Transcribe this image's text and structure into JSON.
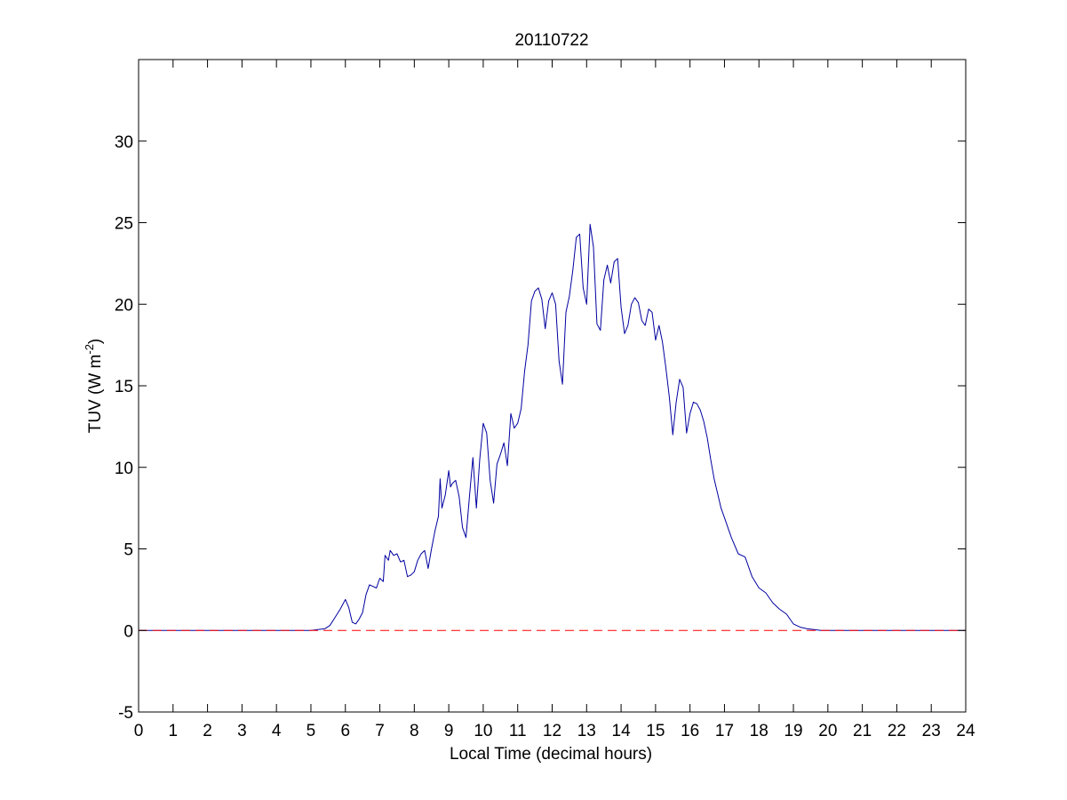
{
  "chart_data": {
    "type": "line",
    "title": "20110722",
    "xlabel": "Local Time (decimal hours)",
    "ylabel": "TUV (W m-2)",
    "ylabel_parts": {
      "base": "TUV (W m",
      "superscript": "-2",
      "close": ")"
    },
    "xlim": [
      0,
      24
    ],
    "ylim": [
      -5,
      35
    ],
    "xticks": [
      0,
      1,
      2,
      3,
      4,
      5,
      6,
      7,
      8,
      9,
      10,
      11,
      12,
      13,
      14,
      15,
      16,
      17,
      18,
      19,
      20,
      21,
      22,
      23,
      24
    ],
    "yticks": [
      -5,
      0,
      5,
      10,
      15,
      20,
      25,
      30
    ],
    "grid": false,
    "series": [
      {
        "color": "#0000a0",
        "style": "solid",
        "x": [
          0,
          5.0,
          5.2,
          5.4,
          5.55,
          5.7,
          5.85,
          6.0,
          6.1,
          6.2,
          6.3,
          6.4,
          6.5,
          6.6,
          6.7,
          6.8,
          6.9,
          7.0,
          7.1,
          7.15,
          7.25,
          7.3,
          7.4,
          7.5,
          7.6,
          7.7,
          7.8,
          7.9,
          8.0,
          8.1,
          8.2,
          8.3,
          8.4,
          8.5,
          8.6,
          8.7,
          8.75,
          8.8,
          8.9,
          9.0,
          9.05,
          9.1,
          9.2,
          9.3,
          9.4,
          9.5,
          9.6,
          9.7,
          9.8,
          9.9,
          10.0,
          10.1,
          10.2,
          10.3,
          10.4,
          10.5,
          10.6,
          10.7,
          10.8,
          10.9,
          11.0,
          11.1,
          11.2,
          11.3,
          11.4,
          11.5,
          11.6,
          11.7,
          11.8,
          11.9,
          12.0,
          12.1,
          12.2,
          12.3,
          12.4,
          12.5,
          12.6,
          12.7,
          12.8,
          12.9,
          13.0,
          13.1,
          13.2,
          13.3,
          13.4,
          13.5,
          13.6,
          13.7,
          13.8,
          13.9,
          14.0,
          14.1,
          14.2,
          14.3,
          14.4,
          14.5,
          14.6,
          14.7,
          14.8,
          14.9,
          15.0,
          15.1,
          15.2,
          15.3,
          15.4,
          15.5,
          15.6,
          15.7,
          15.8,
          15.9,
          16.0,
          16.1,
          16.2,
          16.3,
          16.4,
          16.5,
          16.6,
          16.7,
          16.8,
          16.9,
          17.0,
          17.2,
          17.4,
          17.6,
          17.8,
          18.0,
          18.2,
          18.4,
          18.6,
          18.8,
          19.0,
          19.2,
          19.4,
          19.6,
          19.8,
          20.0,
          24.0
        ],
        "y": [
          0,
          0,
          0.05,
          0.1,
          0.3,
          0.8,
          1.3,
          1.9,
          1.4,
          0.5,
          0.4,
          0.7,
          1.1,
          2.2,
          2.8,
          2.7,
          2.6,
          3.2,
          3.0,
          4.6,
          4.3,
          4.9,
          4.6,
          4.7,
          4.2,
          4.3,
          3.3,
          3.4,
          3.6,
          4.3,
          4.7,
          4.9,
          3.8,
          5.0,
          6.1,
          7.0,
          9.3,
          7.5,
          8.3,
          9.8,
          8.8,
          9.0,
          9.2,
          8.2,
          6.3,
          5.7,
          8.2,
          10.6,
          7.5,
          10.5,
          12.7,
          12.1,
          9.2,
          7.8,
          10.2,
          10.8,
          11.5,
          10.1,
          13.3,
          12.4,
          12.7,
          13.6,
          15.9,
          17.5,
          20.2,
          20.8,
          21.0,
          20.3,
          18.5,
          20.2,
          20.7,
          20.0,
          16.5,
          15.1,
          19.5,
          20.5,
          22.1,
          24.1,
          24.3,
          21.0,
          20.0,
          24.9,
          23.5,
          18.8,
          18.4,
          21.5,
          22.4,
          21.3,
          22.6,
          22.8,
          19.8,
          18.2,
          18.7,
          20.0,
          20.4,
          20.1,
          19.0,
          18.7,
          19.7,
          19.5,
          17.8,
          18.7,
          17.7,
          16.1,
          14.3,
          12.0,
          14.0,
          15.4,
          14.9,
          12.1,
          13.3,
          14.0,
          13.9,
          13.5,
          12.8,
          11.8,
          10.5,
          9.3,
          8.4,
          7.5,
          6.9,
          5.7,
          4.7,
          4.5,
          3.3,
          2.6,
          2.3,
          1.7,
          1.3,
          1.0,
          0.4,
          0.2,
          0.1,
          0.05,
          0.0,
          0.0,
          0.0
        ]
      },
      {
        "color": "#ff0000",
        "style": "dashed",
        "x": [
          0,
          24
        ],
        "y": [
          0,
          0
        ]
      }
    ]
  }
}
